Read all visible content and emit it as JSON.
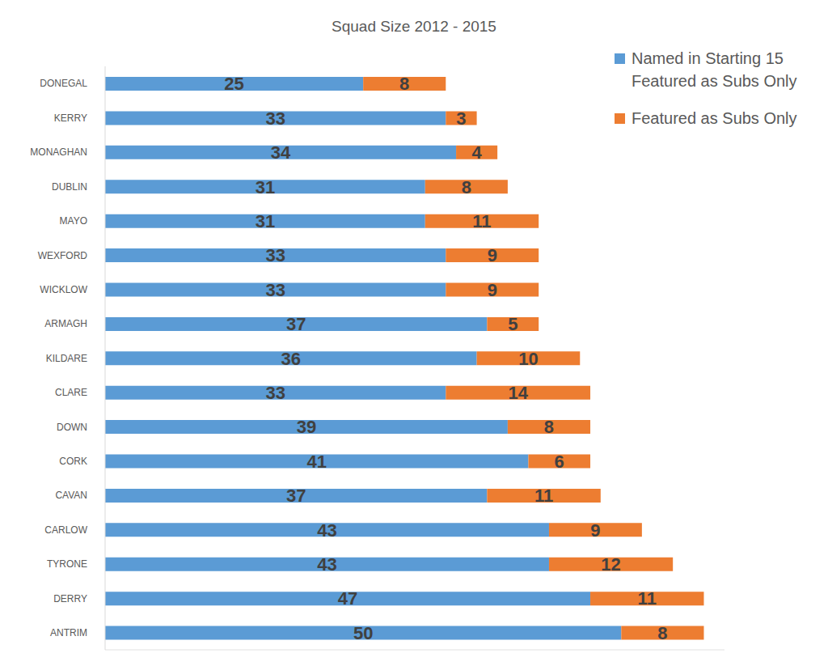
{
  "chart_data": {
    "type": "bar",
    "title": "Squad Size 2012 - 2015",
    "orientation": "horizontal",
    "stacked": true,
    "data_labels": true,
    "tick_labels": "y",
    "grid": false,
    "legend": "top-right",
    "categories": [
      "DONEGAL",
      "KERRY",
      "MONAGHAN",
      "DUBLIN",
      "MAYO",
      "WEXFORD",
      "WICKLOW",
      "ARMAGH",
      "KILDARE",
      "CLARE",
      "DOWN",
      "CORK",
      "CAVAN",
      "CARLOW",
      "TYRONE",
      "DERRY",
      "ANTRIM"
    ],
    "xlim": [
      0,
      60
    ],
    "series": [
      {
        "name": "Named in Starting 15 Featured as Subs Only",
        "color": "#5b9bd5",
        "values": [
          25,
          33,
          34,
          31,
          31,
          33,
          33,
          37,
          36,
          33,
          39,
          41,
          37,
          43,
          43,
          47,
          50
        ]
      },
      {
        "name": "Featured as Subs Only",
        "color": "#ed7d31",
        "values": [
          8,
          3,
          4,
          8,
          11,
          9,
          9,
          5,
          10,
          14,
          8,
          6,
          11,
          9,
          12,
          11,
          8
        ]
      }
    ]
  }
}
